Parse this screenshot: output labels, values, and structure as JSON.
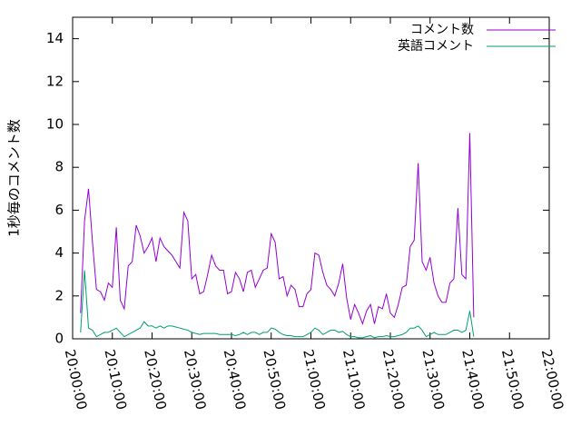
{
  "chart_data": {
    "type": "line",
    "ylabel": "1秒毎のコメント数",
    "x": [
      "20:02:00",
      "20:03:00",
      "20:04:00",
      "20:05:00",
      "20:06:00",
      "20:07:00",
      "20:08:00",
      "20:09:00",
      "20:10:00",
      "20:11:00",
      "20:12:00",
      "20:13:00",
      "20:14:00",
      "20:15:00",
      "20:16:00",
      "20:17:00",
      "20:18:00",
      "20:19:00",
      "20:20:00",
      "20:21:00",
      "20:22:00",
      "20:23:00",
      "20:24:00",
      "20:25:00",
      "20:26:00",
      "20:27:00",
      "20:28:00",
      "20:29:00",
      "20:30:00",
      "20:31:00",
      "20:32:00",
      "20:33:00",
      "20:34:00",
      "20:35:00",
      "20:36:00",
      "20:37:00",
      "20:38:00",
      "20:39:00",
      "20:40:00",
      "20:41:00",
      "20:42:00",
      "20:43:00",
      "20:44:00",
      "20:45:00",
      "20:46:00",
      "20:47:00",
      "20:48:00",
      "20:49:00",
      "20:50:00",
      "20:51:00",
      "20:52:00",
      "20:53:00",
      "20:54:00",
      "20:55:00",
      "20:56:00",
      "20:57:00",
      "20:58:00",
      "20:59:00",
      "21:00:00",
      "21:01:00",
      "21:02:00",
      "21:03:00",
      "21:04:00",
      "21:05:00",
      "21:06:00",
      "21:07:00",
      "21:08:00",
      "21:09:00",
      "21:10:00",
      "21:11:00",
      "21:12:00",
      "21:13:00",
      "21:14:00",
      "21:15:00",
      "21:16:00",
      "21:17:00",
      "21:18:00",
      "21:19:00",
      "21:20:00",
      "21:21:00",
      "21:22:00",
      "21:23:00",
      "21:24:00",
      "21:25:00",
      "21:26:00",
      "21:27:00",
      "21:28:00",
      "21:29:00",
      "21:30:00",
      "21:31:00",
      "21:32:00",
      "21:33:00",
      "21:34:00",
      "21:35:00",
      "21:36:00",
      "21:37:00",
      "21:38:00",
      "21:39:00",
      "21:40:00",
      "21:41:00"
    ],
    "series": [
      {
        "name": "コメント数",
        "color": "#9400d3",
        "values": [
          1.2,
          5.5,
          7.0,
          4.5,
          2.3,
          2.2,
          1.8,
          2.6,
          2.4,
          5.2,
          1.8,
          1.4,
          3.4,
          3.6,
          5.3,
          4.8,
          4.0,
          4.3,
          4.7,
          3.6,
          4.7,
          4.3,
          4.1,
          3.9,
          3.6,
          3.3,
          5.9,
          5.5,
          2.8,
          3.0,
          2.1,
          2.2,
          3.0,
          3.9,
          3.4,
          3.2,
          3.2,
          2.1,
          2.2,
          3.1,
          2.8,
          2.2,
          3.1,
          3.2,
          2.4,
          2.8,
          3.2,
          3.3,
          4.9,
          4.5,
          2.8,
          2.9,
          2.0,
          2.5,
          2.3,
          1.5,
          1.5,
          2.1,
          2.3,
          4.0,
          3.9,
          3.1,
          2.5,
          2.3,
          2.0,
          2.6,
          3.5,
          1.9,
          0.9,
          1.6,
          1.2,
          0.7,
          1.3,
          1.6,
          0.7,
          1.5,
          1.4,
          2.1,
          1.2,
          1.0,
          1.6,
          2.4,
          2.5,
          4.3,
          4.6,
          8.2,
          3.6,
          3.2,
          3.8,
          2.6,
          2.0,
          1.7,
          1.7,
          2.6,
          2.8,
          6.1,
          3.0,
          2.8,
          9.6,
          1.0
        ]
      },
      {
        "name": "英語コメント",
        "color": "#009e73",
        "values": [
          0.3,
          3.2,
          0.5,
          0.4,
          0.1,
          0.2,
          0.3,
          0.3,
          0.4,
          0.5,
          0.3,
          0.1,
          0.2,
          0.3,
          0.4,
          0.5,
          0.8,
          0.6,
          0.6,
          0.5,
          0.6,
          0.5,
          0.6,
          0.6,
          0.55,
          0.5,
          0.45,
          0.4,
          0.3,
          0.25,
          0.2,
          0.25,
          0.25,
          0.25,
          0.25,
          0.2,
          0.2,
          0.2,
          0.2,
          0.15,
          0.2,
          0.3,
          0.2,
          0.3,
          0.3,
          0.2,
          0.3,
          0.3,
          0.5,
          0.45,
          0.3,
          0.2,
          0.15,
          0.15,
          0.1,
          0.1,
          0.1,
          0.2,
          0.3,
          0.5,
          0.4,
          0.2,
          0.3,
          0.4,
          0.4,
          0.3,
          0.35,
          0.2,
          0.1,
          0.1,
          0.05,
          0.05,
          0.1,
          0.15,
          0.05,
          0.1,
          0.1,
          0.15,
          0.1,
          0.1,
          0.15,
          0.2,
          0.3,
          0.5,
          0.5,
          0.6,
          0.4,
          0.1,
          0.2,
          0.3,
          0.2,
          0.2,
          0.2,
          0.3,
          0.4,
          0.4,
          0.3,
          0.4,
          1.3,
          0.1
        ]
      }
    ],
    "xlim": [
      "20:00:00",
      "22:00:00"
    ],
    "xticks": [
      "20:00:00",
      "20:10:00",
      "20:20:00",
      "20:30:00",
      "20:40:00",
      "20:50:00",
      "21:00:00",
      "21:10:00",
      "21:20:00",
      "21:30:00",
      "21:40:00",
      "21:50:00",
      "22:00:00"
    ],
    "ylim": [
      0,
      15
    ],
    "yticks": [
      0,
      2,
      4,
      6,
      8,
      10,
      12,
      14
    ],
    "grid": false,
    "legend": "top-right"
  }
}
